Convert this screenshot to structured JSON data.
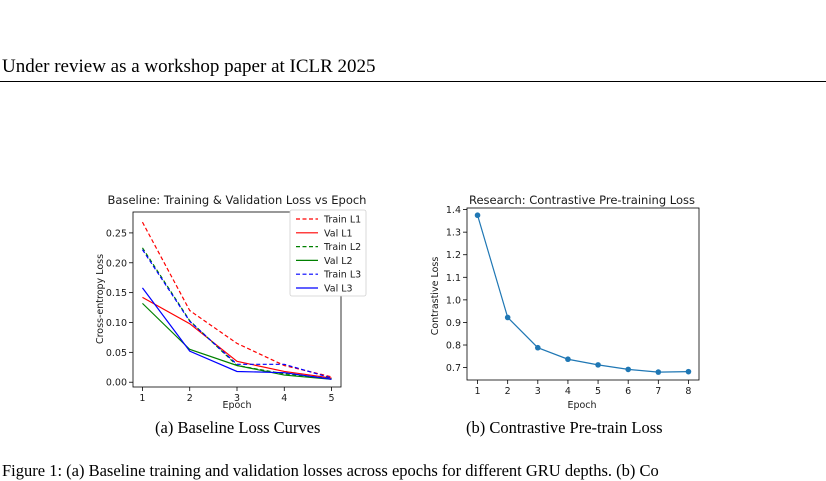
{
  "header": {
    "running_head": "Under review as a workshop paper at ICLR 2025"
  },
  "figures": [
    {
      "caption": "(a)  Baseline Loss Curves"
    },
    {
      "caption": "(b)  Contrastive Pre-train Loss"
    }
  ],
  "body": {
    "partial_line": "Figure 1: (a) Baseline training and validation losses across epochs for different GRU depths. (b) Co"
  },
  "colors": {
    "red": "#ff0000",
    "green": "#008000",
    "blue": "#0000ff",
    "steel": "#1f77b4"
  },
  "chart_data": [
    {
      "type": "line",
      "title": "Baseline: Training & Validation Loss vs Epoch",
      "xlabel": "Epoch",
      "ylabel": "Cross-entropy Loss",
      "x": [
        1,
        2,
        3,
        4,
        5
      ],
      "x_ticks": [
        "1",
        "2",
        "3",
        "4",
        "5"
      ],
      "y_ticks": [
        "0.00",
        "0.05",
        "0.10",
        "0.15",
        "0.20",
        "0.25"
      ],
      "xlim": [
        0.8,
        5.2
      ],
      "ylim": [
        -0.008,
        0.285
      ],
      "legend_position": "top-right",
      "series": [
        {
          "name": "Train L1",
          "color": "#ff0000",
          "dash": "dashed",
          "values": [
            0.268,
            0.12,
            0.065,
            0.028,
            0.009
          ]
        },
        {
          "name": "Val L1",
          "color": "#ff0000",
          "dash": "solid",
          "values": [
            0.142,
            0.098,
            0.035,
            0.018,
            0.007
          ]
        },
        {
          "name": "Train L2",
          "color": "#008000",
          "dash": "dashed",
          "values": [
            0.225,
            0.103,
            0.028,
            0.014,
            0.006
          ]
        },
        {
          "name": "Val L2",
          "color": "#008000",
          "dash": "solid",
          "values": [
            0.132,
            0.055,
            0.028,
            0.012,
            0.005
          ]
        },
        {
          "name": "Train L3",
          "color": "#0000ff",
          "dash": "dashed",
          "values": [
            0.222,
            0.102,
            0.03,
            0.03,
            0.007
          ]
        },
        {
          "name": "Val L3",
          "color": "#0000ff",
          "dash": "solid",
          "values": [
            0.158,
            0.052,
            0.018,
            0.016,
            0.005
          ]
        }
      ]
    },
    {
      "type": "line",
      "title": "Research: Contrastive Pre-training Loss",
      "xlabel": "Epoch",
      "ylabel": "Contrastive Loss",
      "x": [
        1,
        2,
        3,
        4,
        5,
        6,
        7,
        8
      ],
      "x_ticks": [
        "1",
        "2",
        "3",
        "4",
        "5",
        "6",
        "7",
        "8"
      ],
      "y_ticks": [
        "0.7",
        "0.8",
        "0.9",
        "1.0",
        "1.1",
        "1.2",
        "1.3",
        "1.4"
      ],
      "xlim": [
        0.65,
        8.35
      ],
      "ylim": [
        0.645,
        1.407
      ],
      "series": [
        {
          "color": "#1f77b4",
          "marker": "circle",
          "values": [
            1.375,
            0.922,
            0.788,
            0.737,
            0.712,
            0.692,
            0.68,
            0.682
          ]
        }
      ]
    }
  ]
}
